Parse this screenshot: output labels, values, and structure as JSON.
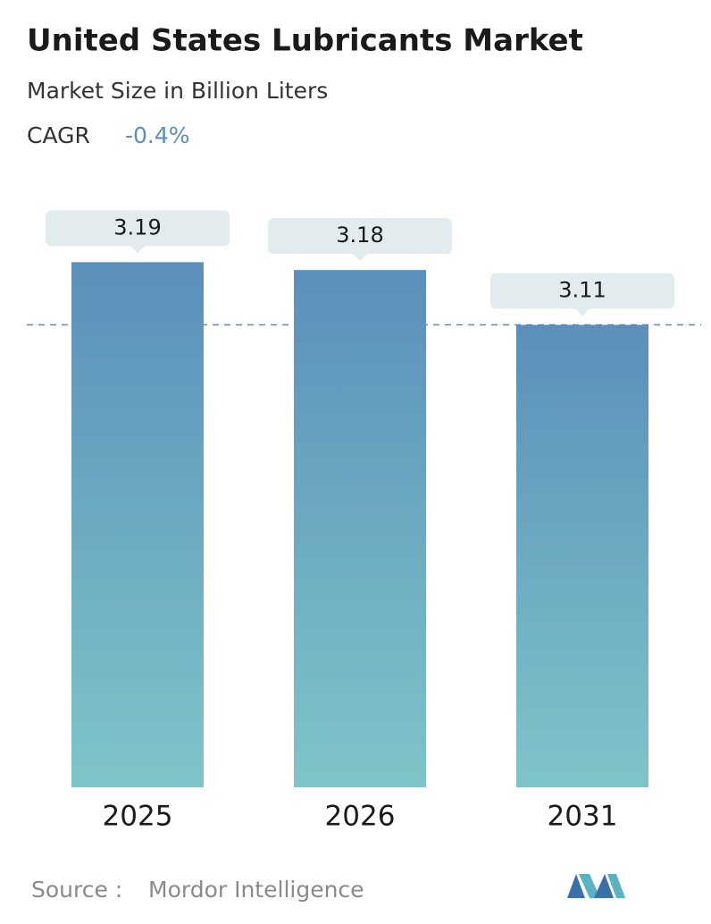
{
  "chart_data": {
    "type": "bar",
    "title": "United States Lubricants Market",
    "subtitle": "Market Size in Billion Liters",
    "cagr_label": "CAGR",
    "cagr_value": "-0.4%",
    "categories": [
      "2025",
      "2026",
      "2031"
    ],
    "values": [
      3.19,
      3.18,
      3.11
    ],
    "colors": [
      "#5b8fba",
      "#7ec5c9"
    ],
    "ylim": [
      2.52,
      3.26
    ],
    "source_label": "Source :",
    "source": "Mordor Intelligence"
  }
}
